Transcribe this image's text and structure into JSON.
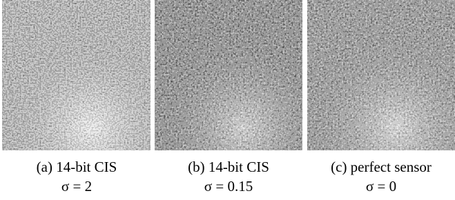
{
  "figures": [
    {
      "caption": "(a) 14-bit CIS",
      "sigma": "σ = 2"
    },
    {
      "caption": "(b) 14-bit CIS",
      "sigma": "σ = 0.15"
    },
    {
      "caption": "(c) perfect sensor",
      "sigma": "σ = 0"
    }
  ]
}
